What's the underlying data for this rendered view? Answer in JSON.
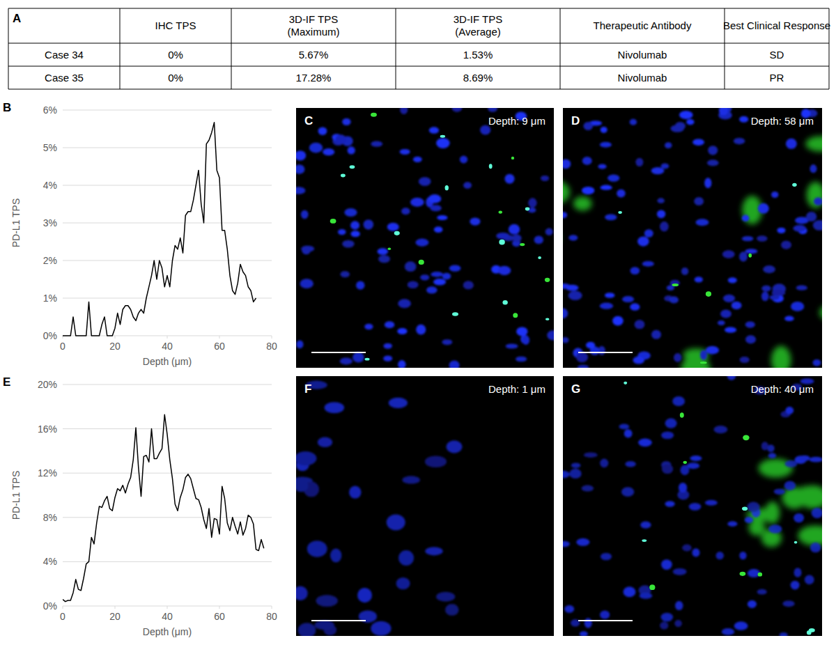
{
  "table": {
    "panel": "A",
    "headers": [
      "IHC TPS",
      "3D-IF TPS (Maximum)",
      "3D-IF TPS (Average)",
      "Therapeutic Antibody",
      "Best Clinical Response"
    ],
    "rows": [
      {
        "label": "Case 34",
        "cells": [
          "0%",
          "5.67%",
          "1.53%",
          "Nivolumab",
          "SD"
        ]
      },
      {
        "label": "Case 35",
        "cells": [
          "0%",
          "17.28%",
          "8.69%",
          "Nivolumab",
          "PR"
        ]
      }
    ]
  },
  "chart_data": [
    {
      "type": "line",
      "panel": "B",
      "x_label": "Depth (μm)",
      "y_label": "PD-L1 TPS",
      "x": [
        0,
        1,
        2,
        3,
        4,
        5,
        6,
        7,
        8,
        9,
        10,
        11,
        12,
        13,
        14,
        15,
        16,
        17,
        18,
        19,
        20,
        21,
        22,
        23,
        24,
        25,
        26,
        27,
        28,
        29,
        30,
        31,
        32,
        33,
        34,
        35,
        36,
        37,
        38,
        39,
        40,
        41,
        42,
        43,
        44,
        45,
        46,
        47,
        48,
        49,
        50,
        51,
        52,
        53,
        54,
        55,
        56,
        57,
        58,
        59,
        60,
        61,
        62,
        63,
        64,
        65,
        66,
        67,
        68,
        69,
        70,
        71,
        72,
        73,
        74
      ],
      "series": [
        {
          "name": "PD-L1 TPS",
          "color": "#000000",
          "values": [
            0,
            0,
            0,
            0,
            0.5,
            0,
            0,
            0,
            0,
            0,
            0.9,
            0,
            0,
            0,
            0,
            0.3,
            0.5,
            0,
            0,
            0,
            0.2,
            0.6,
            0.3,
            0.7,
            0.8,
            0.8,
            0.7,
            0.5,
            0.4,
            0.6,
            0.7,
            0.6,
            1.0,
            1.3,
            1.6,
            2.0,
            1.5,
            2.0,
            1.8,
            1.3,
            1.6,
            1.3,
            2.0,
            2.4,
            2.3,
            2.6,
            2.2,
            3.2,
            3.3,
            3.3,
            3.6,
            4.0,
            4.4,
            3.5,
            3.0,
            5.1,
            5.2,
            5.4,
            5.67,
            4.4,
            4.2,
            2.8,
            2.8,
            2.3,
            1.6,
            1.2,
            1.1,
            1.4,
            1.9,
            1.7,
            1.6,
            1.3,
            1.2,
            0.9,
            1.0
          ]
        }
      ],
      "xlim": [
        0,
        80
      ],
      "xticks": [
        0,
        20,
        40,
        60,
        80
      ],
      "ylim": [
        0,
        6
      ],
      "yticks": [
        {
          "value": 0,
          "label": "0%"
        },
        {
          "value": 1,
          "label": "1%"
        },
        {
          "value": 2,
          "label": "2%"
        },
        {
          "value": 3,
          "label": "3%"
        },
        {
          "value": 4,
          "label": "4%"
        },
        {
          "value": 5,
          "label": "5%"
        },
        {
          "value": 6,
          "label": "6%"
        }
      ],
      "grid": true
    },
    {
      "type": "line",
      "panel": "E",
      "x_label": "Depth (μm)",
      "y_label": "PD-L1 TPS",
      "x": [
        0,
        1,
        2,
        3,
        4,
        5,
        6,
        7,
        8,
        9,
        10,
        11,
        12,
        13,
        14,
        15,
        16,
        17,
        18,
        19,
        20,
        21,
        22,
        23,
        24,
        25,
        26,
        27,
        28,
        29,
        30,
        31,
        32,
        33,
        34,
        35,
        36,
        37,
        38,
        39,
        40,
        41,
        42,
        43,
        44,
        45,
        46,
        47,
        48,
        49,
        50,
        51,
        52,
        53,
        54,
        55,
        56,
        57,
        58,
        59,
        60,
        61,
        62,
        63,
        64,
        65,
        66,
        67,
        68,
        69,
        70,
        71,
        72,
        73,
        74,
        75,
        76,
        77
      ],
      "series": [
        {
          "name": "PD-L1 TPS",
          "color": "#000000",
          "values": [
            0.6,
            0.4,
            0.5,
            0.5,
            1.2,
            2.4,
            1.5,
            1.4,
            2.5,
            3.8,
            4.0,
            6.2,
            5.6,
            7.5,
            9.0,
            8.9,
            9.5,
            9.9,
            8.8,
            8.6,
            9.8,
            10.6,
            10.4,
            10.9,
            10.2,
            11.0,
            11.6,
            13.2,
            16.1,
            12.5,
            9.9,
            13.5,
            13.6,
            13.0,
            16.0,
            13.3,
            13.3,
            13.8,
            14.2,
            17.28,
            15.5,
            13.2,
            11.5,
            9.2,
            8.6,
            9.8,
            10.5,
            11.6,
            11.9,
            11.5,
            10.6,
            9.7,
            9.6,
            8.9,
            7.8,
            7.0,
            8.8,
            6.2,
            7.9,
            7.8,
            6.5,
            10.8,
            9.7,
            7.5,
            6.8,
            8.0,
            7.2,
            6.5,
            7.6,
            6.4,
            7.0,
            8.2,
            8.0,
            7.4,
            5.1,
            5.0,
            6.0,
            5.2
          ]
        }
      ],
      "xlim": [
        0,
        80
      ],
      "xticks": [
        0,
        20,
        40,
        60,
        80
      ],
      "ylim": [
        0,
        20
      ],
      "yticks": [
        {
          "value": 0,
          "label": "0%"
        },
        {
          "value": 4,
          "label": "4%"
        },
        {
          "value": 8,
          "label": "8%"
        },
        {
          "value": 12,
          "label": "12%"
        },
        {
          "value": 16,
          "label": "16%"
        },
        {
          "value": 20,
          "label": "20%"
        }
      ],
      "grid": true
    }
  ],
  "images": [
    {
      "panel": "C",
      "depth_label": "Depth: 9 μm"
    },
    {
      "panel": "D",
      "depth_label": "Depth: 58 μm"
    },
    {
      "panel": "F",
      "depth_label": "Depth: 1 μm"
    },
    {
      "panel": "G",
      "depth_label": "Depth: 40 μm"
    }
  ]
}
